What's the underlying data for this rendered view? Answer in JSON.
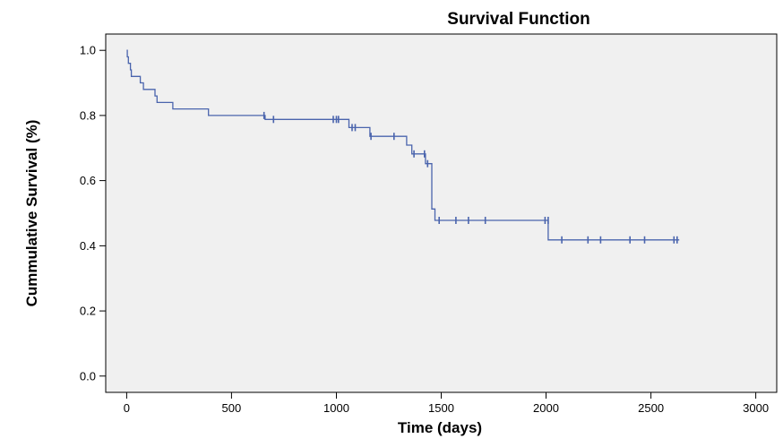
{
  "chart_data": {
    "type": "line",
    "title": "Survival Function",
    "xlabel": "Time (days)",
    "ylabel": "Cummulative Survival (%)",
    "xlim": [
      -100,
      3100
    ],
    "ylim": [
      -0.05,
      1.05
    ],
    "xticks": [
      0,
      500,
      1000,
      1500,
      2000,
      2500,
      3000
    ],
    "yticks": [
      0.0,
      0.2,
      0.4,
      0.6,
      0.8,
      1.0
    ],
    "ytick_labels": [
      "0.0",
      "0.2",
      "0.4",
      "0.6",
      "0.8",
      "1.0"
    ],
    "grid": false,
    "colors": {
      "line": "#4a64ad",
      "plot_background": "#f0f0f0",
      "axis": "#000000"
    },
    "step_curve": [
      {
        "x": 0,
        "y": 1.0
      },
      {
        "x": 3,
        "y": 0.98
      },
      {
        "x": 8,
        "y": 0.96
      },
      {
        "x": 18,
        "y": 0.94
      },
      {
        "x": 22,
        "y": 0.92
      },
      {
        "x": 65,
        "y": 0.9
      },
      {
        "x": 80,
        "y": 0.88
      },
      {
        "x": 135,
        "y": 0.86
      },
      {
        "x": 145,
        "y": 0.84
      },
      {
        "x": 220,
        "y": 0.82
      },
      {
        "x": 390,
        "y": 0.8
      },
      {
        "x": 660,
        "y": 0.788
      },
      {
        "x": 1060,
        "y": 0.763
      },
      {
        "x": 1160,
        "y": 0.736
      },
      {
        "x": 1335,
        "y": 0.709
      },
      {
        "x": 1360,
        "y": 0.682
      },
      {
        "x": 1425,
        "y": 0.652
      },
      {
        "x": 1455,
        "y": 0.513
      },
      {
        "x": 1470,
        "y": 0.478
      },
      {
        "x": 2010,
        "y": 0.418
      },
      {
        "x": 2635,
        "y": 0.418
      }
    ],
    "censored": [
      {
        "x": 655,
        "y": 0.8
      },
      {
        "x": 700,
        "y": 0.788
      },
      {
        "x": 985,
        "y": 0.788
      },
      {
        "x": 1000,
        "y": 0.788
      },
      {
        "x": 1010,
        "y": 0.788
      },
      {
        "x": 1075,
        "y": 0.763
      },
      {
        "x": 1090,
        "y": 0.763
      },
      {
        "x": 1165,
        "y": 0.736
      },
      {
        "x": 1275,
        "y": 0.736
      },
      {
        "x": 1370,
        "y": 0.682
      },
      {
        "x": 1420,
        "y": 0.682
      },
      {
        "x": 1435,
        "y": 0.652
      },
      {
        "x": 1490,
        "y": 0.478
      },
      {
        "x": 1570,
        "y": 0.478
      },
      {
        "x": 1630,
        "y": 0.478
      },
      {
        "x": 1710,
        "y": 0.478
      },
      {
        "x": 1995,
        "y": 0.478
      },
      {
        "x": 2010,
        "y": 0.478
      },
      {
        "x": 2075,
        "y": 0.418
      },
      {
        "x": 2200,
        "y": 0.418
      },
      {
        "x": 2260,
        "y": 0.418
      },
      {
        "x": 2400,
        "y": 0.418
      },
      {
        "x": 2470,
        "y": 0.418
      },
      {
        "x": 2610,
        "y": 0.418
      },
      {
        "x": 2625,
        "y": 0.418
      }
    ]
  }
}
